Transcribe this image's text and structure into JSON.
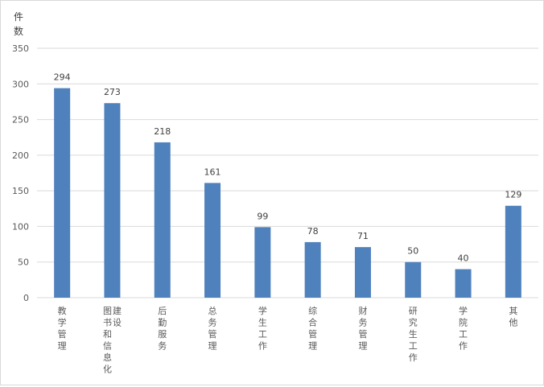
{
  "chart_data": {
    "type": "bar",
    "title": "",
    "xlabel": "",
    "ylabel": "件数",
    "ylim": [
      0,
      350
    ],
    "yticks": [
      0,
      50,
      100,
      150,
      200,
      250,
      300,
      350
    ],
    "grid": true,
    "legend": "none",
    "categories": [
      "教学管理",
      "图书和信息化建设",
      "后勤服务",
      "总务管理",
      "学生工作",
      "综合管理",
      "财务管理",
      "研究生工作",
      "学院工作",
      "其他"
    ],
    "values": [
      294,
      273,
      218,
      161,
      99,
      78,
      71,
      50,
      40,
      129
    ],
    "bar_color": "#4f81bd"
  }
}
